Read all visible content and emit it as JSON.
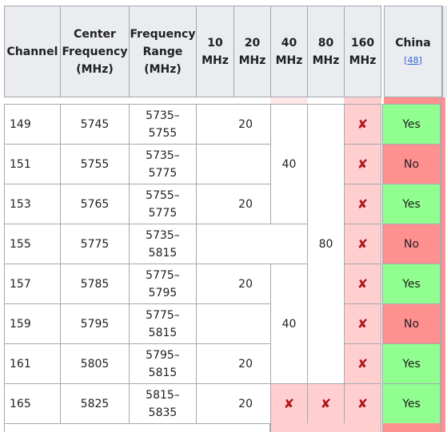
{
  "headers": {
    "channel": "Channel",
    "center_freq": [
      "Center",
      "Frequency",
      "(MHz)"
    ],
    "freq_range": [
      "Frequency",
      "Range",
      "(MHz)"
    ],
    "w10": [
      "10",
      "MHz"
    ],
    "w20": [
      "20",
      "MHz"
    ],
    "w40": [
      "40",
      "MHz"
    ],
    "w80": [
      "80",
      "MHz"
    ],
    "w160": [
      "160",
      "MHz"
    ],
    "china": "China",
    "china_ref": "[48]"
  },
  "rows": [
    {
      "channel": "149",
      "center": "5745",
      "range": [
        "5735–",
        "5755"
      ],
      "w20": "20",
      "china": "Yes"
    },
    {
      "channel": "151",
      "center": "5755",
      "range": [
        "5735–",
        "5775"
      ],
      "w20": "",
      "china": "No"
    },
    {
      "channel": "153",
      "center": "5765",
      "range": [
        "5755–",
        "5775"
      ],
      "w20": "20",
      "china": "Yes"
    },
    {
      "channel": "155",
      "center": "5775",
      "range": [
        "5735–",
        "5815"
      ],
      "w20": "",
      "china": "No"
    },
    {
      "channel": "157",
      "center": "5785",
      "range": [
        "5775–",
        "5795"
      ],
      "w20": "20",
      "china": "Yes"
    },
    {
      "channel": "159",
      "center": "5795",
      "range": [
        "5775–",
        "5815"
      ],
      "w20": "",
      "china": "No"
    },
    {
      "channel": "161",
      "center": "5805",
      "range": [
        "5795–",
        "5815"
      ],
      "w20": "20",
      "china": "Yes"
    },
    {
      "channel": "165",
      "center": "5825",
      "range": [
        "5815–",
        "5835"
      ],
      "w20": "20",
      "china": "Yes"
    }
  ],
  "merged": {
    "w40_a": "40",
    "w40_b": "40",
    "w80": "80"
  },
  "not_available_glyph": "✘",
  "colors": {
    "header_bg": "#eaecf0",
    "yes_bg": "#90ff90",
    "no_bg": "#ff9090",
    "unavailable_bg": "#ffcfcf",
    "x_mark": "#b0161c",
    "link": "#3366cc"
  }
}
